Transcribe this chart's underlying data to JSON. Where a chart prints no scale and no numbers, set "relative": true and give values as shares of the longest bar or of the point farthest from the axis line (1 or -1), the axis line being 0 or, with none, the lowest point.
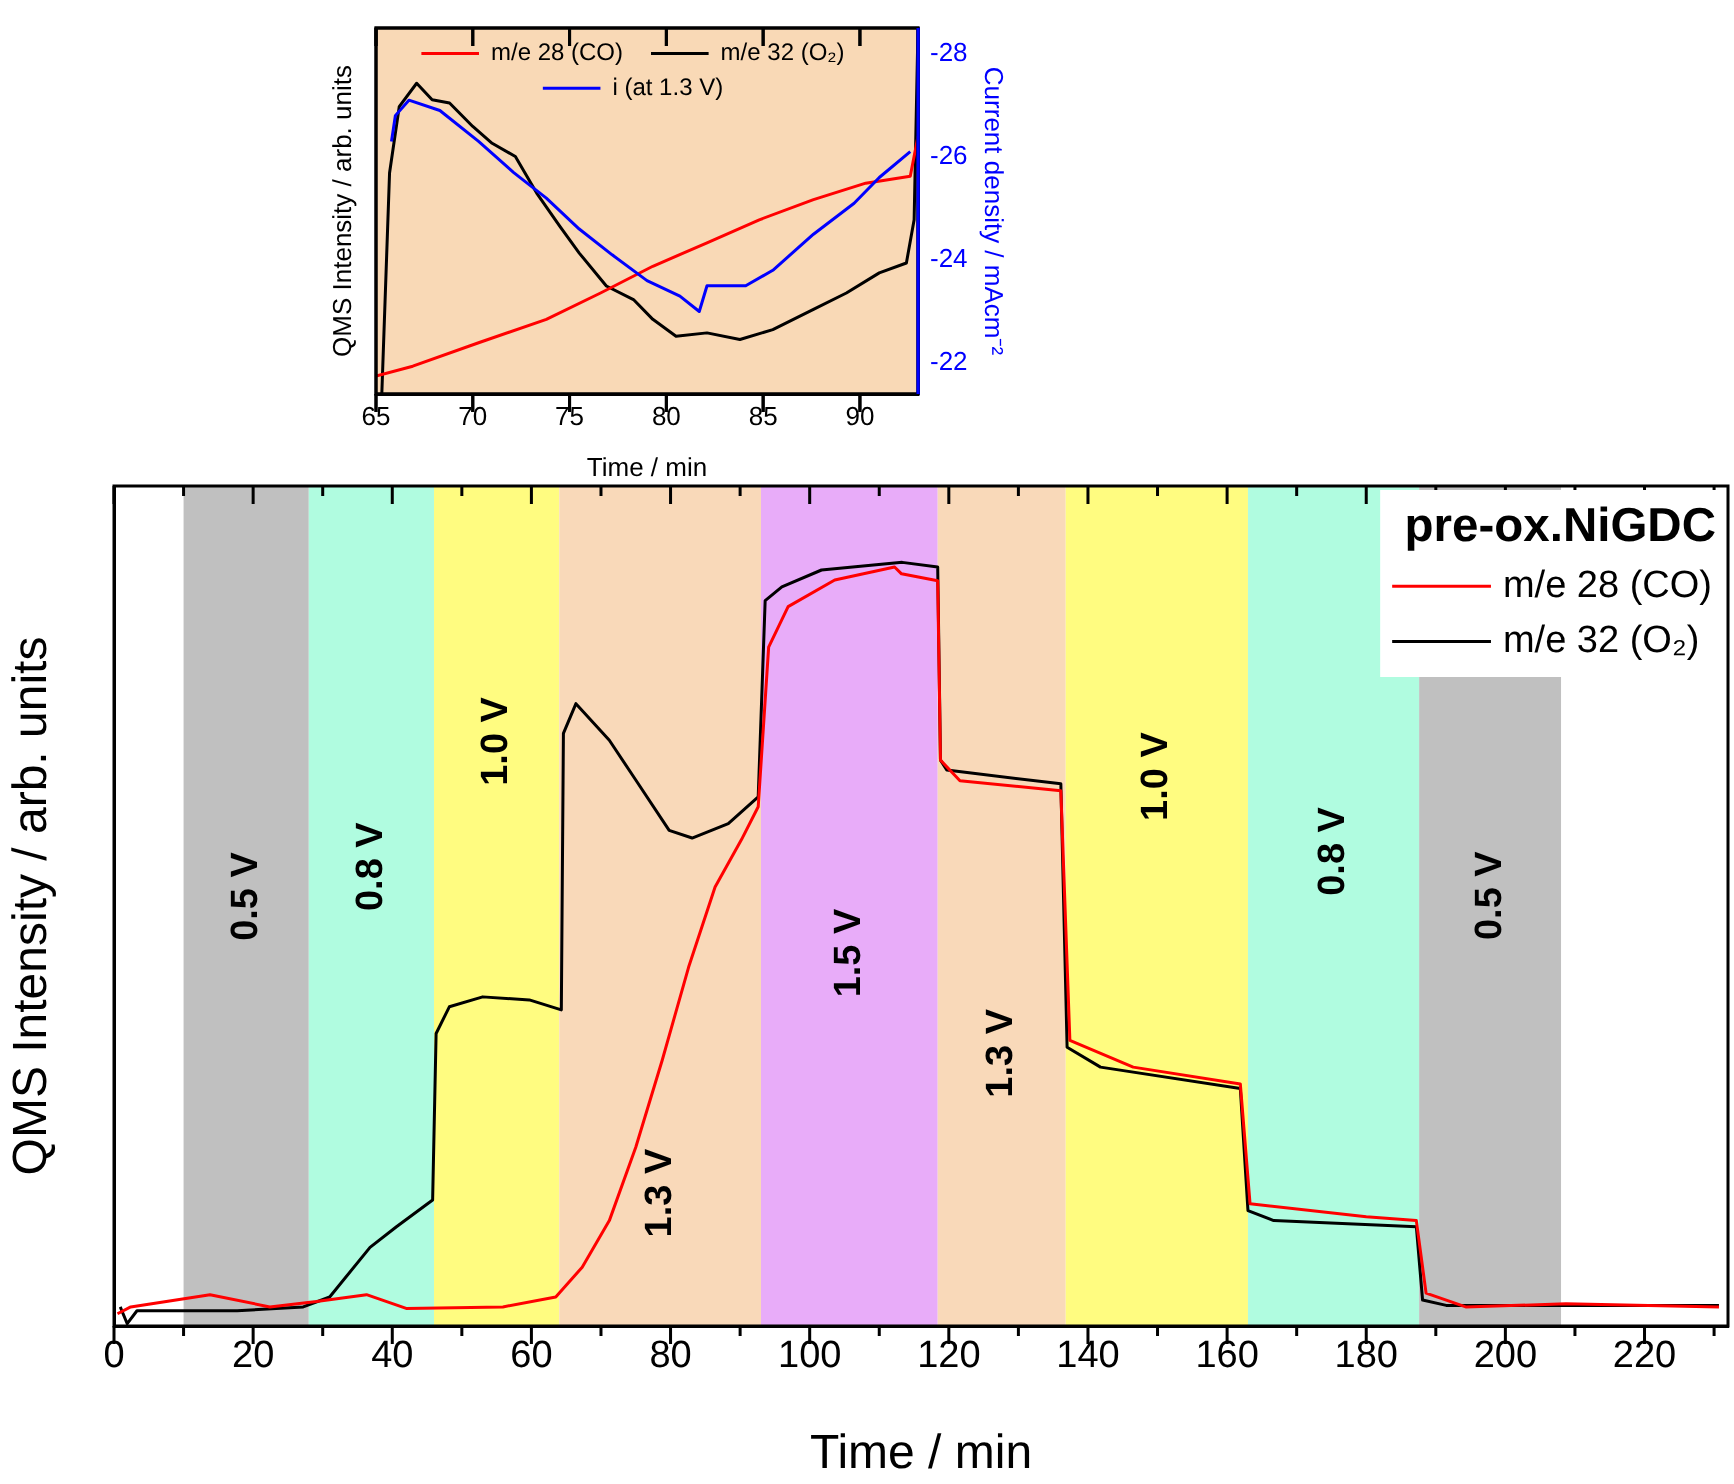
{
  "chart_data": [
    {
      "type": "line",
      "xlabel": "Time / min",
      "ylabel": "QMS Intensity / arb. units",
      "relative": true,
      "xlim": [
        65,
        93
      ],
      "xticks": [
        65,
        70,
        75,
        80,
        85,
        90
      ],
      "legend": "top",
      "bands": [
        {
          "axis": "x",
          "from": 65,
          "to": 93,
          "color": "#f9d9b6"
        }
      ],
      "series": [
        {
          "name": "m/e 28 (CO)",
          "color": "#ff0000",
          "x": [
            65.0,
            66.9,
            70.3,
            73.8,
            76.6,
            79.3,
            82.1,
            84.8,
            87.6,
            90.3,
            92.6,
            93.0
          ],
          "values": [
            0.049,
            0.076,
            0.14,
            0.204,
            0.276,
            0.349,
            0.413,
            0.476,
            0.531,
            0.576,
            0.595,
            0.704
          ]
        },
        {
          "name": "m/e 32 (O₂)",
          "color": "#000000",
          "x": [
            65.3,
            65.7,
            66.2,
            67.1,
            67.9,
            68.8,
            70.0,
            71.0,
            72.2,
            73.3,
            74.5,
            75.5,
            76.9,
            78.3,
            79.3,
            80.5,
            82.1,
            83.8,
            85.5,
            87.6,
            89.3,
            91.0,
            92.4,
            92.8,
            93.0
          ],
          "values": [
            0,
            0.604,
            0.785,
            0.849,
            0.804,
            0.795,
            0.731,
            0.685,
            0.649,
            0.549,
            0.458,
            0.385,
            0.295,
            0.258,
            0.204,
            0.158,
            0.167,
            0.149,
            0.176,
            0.231,
            0.276,
            0.331,
            0.358,
            0.476,
            1
          ]
        }
      ]
    },
    {
      "type": "line",
      "ylabel": "Current density / mAcm⁻²",
      "xlim": [
        65,
        93
      ],
      "xticks": [
        65,
        70,
        75,
        80,
        85,
        90
      ],
      "ylim": [
        -21.4,
        -28.5
      ],
      "yticks": [
        -22,
        -24,
        -26,
        -28
      ],
      "tick_labels": "y",
      "legend": "top",
      "series": [
        {
          "name": "i (at 1.3 V)",
          "color": "#0000ff",
          "x": [
            65.8,
            66.0,
            66.7,
            68.3,
            70.3,
            72.1,
            73.8,
            75.5,
            77.2,
            79.0,
            80.7,
            81.7,
            82.1,
            84.1,
            85.5,
            87.6,
            89.7,
            91.0,
            92.6
          ],
          "values": [
            -26.3,
            -26.8,
            -27.1,
            -26.9,
            -26.3,
            -25.7,
            -25.2,
            -24.6,
            -24.1,
            -23.6,
            -23.3,
            -23.0,
            -23.5,
            -23.5,
            -23.8,
            -24.5,
            -25.1,
            -25.6,
            -26.1
          ]
        }
      ]
    },
    {
      "type": "line",
      "xlabel": "Time / min",
      "ylabel": "QMS Intensity / arb. units",
      "legend_title": "pre-ox.NiGDC",
      "relative": true,
      "xlim": [
        0,
        232
      ],
      "legend": "top right",
      "xticks": [
        0,
        {
          "value": 10,
          "label": null
        },
        20,
        {
          "value": 30,
          "label": null
        },
        40,
        {
          "value": 50,
          "label": null
        },
        60,
        {
          "value": 70,
          "label": null
        },
        80,
        {
          "value": 90,
          "label": null
        },
        100,
        {
          "value": 110,
          "label": null
        },
        120,
        {
          "value": 130,
          "label": null
        },
        140,
        {
          "value": 150,
          "label": null
        },
        160,
        {
          "value": 170,
          "label": null
        },
        180,
        {
          "value": 190,
          "label": null
        },
        200,
        {
          "value": 210,
          "label": null
        },
        220,
        {
          "value": 230,
          "label": null
        }
      ],
      "bands": [
        {
          "axis": "x",
          "from": 10,
          "to": 28,
          "label": "0.5 V",
          "color": "#c0c0c0"
        },
        {
          "axis": "x",
          "from": 28,
          "to": 46,
          "label": "0.8 V",
          "color": "#b0fce0"
        },
        {
          "axis": "x",
          "from": 46,
          "to": 64,
          "label": "1.0 V",
          "color": "#fffc80"
        },
        {
          "axis": "x",
          "from": 64,
          "to": 93,
          "label": "1.3 V",
          "color": "#f9d9b9"
        },
        {
          "axis": "x",
          "from": 93,
          "to": 118.4,
          "label": "1.5 V",
          "color": "#e8acf9"
        },
        {
          "axis": "x",
          "from": 118.4,
          "to": 136.8,
          "label": "1.3 V",
          "color": "#f9d9b9"
        },
        {
          "axis": "x",
          "from": 136.8,
          "to": 163,
          "label": "1.0 V",
          "color": "#fffc80"
        },
        {
          "axis": "x",
          "from": 163,
          "to": 187.6,
          "label": "0.8 V",
          "color": "#b0fce0"
        },
        {
          "axis": "x",
          "from": 187.6,
          "to": 208,
          "label": "0.5 V",
          "color": "#c0c0c0"
        }
      ],
      "series": [
        {
          "name": "m/e 28 (CO)",
          "color": "#ff0000",
          "x": [
            0.5,
            2.4,
            13.8,
            22.4,
            29.1,
            36.3,
            42.0,
            55.9,
            63.5,
            67.3,
            71.2,
            75.0,
            78.8,
            82.6,
            86.4,
            90.2,
            92.6,
            94.1,
            96.9,
            103.6,
            112.2,
            113.2,
            118.4,
            118.8,
            121.6,
            136.1,
            137.4,
            146.5,
            161.9,
            163.3,
            180.0,
            187.2,
            188.6,
            194.3,
            208.7,
            230.7
          ],
          "values": [
            0.016,
            0.025,
            0.041,
            0.025,
            0.032,
            0.041,
            0.023,
            0.025,
            0.038,
            0.077,
            0.138,
            0.234,
            0.348,
            0.47,
            0.575,
            0.637,
            0.68,
            0.889,
            0.942,
            0.977,
            0.994,
            0.985,
            0.976,
            0.741,
            0.714,
            0.701,
            0.374,
            0.339,
            0.317,
            0.16,
            0.143,
            0.138,
            0.043,
            0.025,
            0.029,
            0.025
          ]
        },
        {
          "name": "m/e 32 (O₂)",
          "color": "#000000",
          "x": [
            0.9,
            1.9,
            3.3,
            17.7,
            27.2,
            31.0,
            36.8,
            40.6,
            45.8,
            46.3,
            48.2,
            53.0,
            59.7,
            64.3,
            64.6,
            66.4,
            71.2,
            75.0,
            79.8,
            83.1,
            88.3,
            92.6,
            93.6,
            96.0,
            101.7,
            113.3,
            118.4,
            118.8,
            119.7,
            136.1,
            137.0,
            141.8,
            161.9,
            163.0,
            166.7,
            187.2,
            188.1,
            191.5,
            208.7,
            230.7
          ],
          "values": [
            0.025,
            0.003,
            0.02,
            0.02,
            0.025,
            0.038,
            0.103,
            0.13,
            0.165,
            0.383,
            0.418,
            0.431,
            0.427,
            0.414,
            0.776,
            0.815,
            0.767,
            0.715,
            0.649,
            0.639,
            0.658,
            0.693,
            0.95,
            0.968,
            0.99,
            1,
            0.994,
            0.741,
            0.728,
            0.71,
            0.365,
            0.339,
            0.311,
            0.151,
            0.138,
            0.13,
            0.034,
            0.027,
            0.027,
            0.027
          ]
        }
      ]
    }
  ]
}
